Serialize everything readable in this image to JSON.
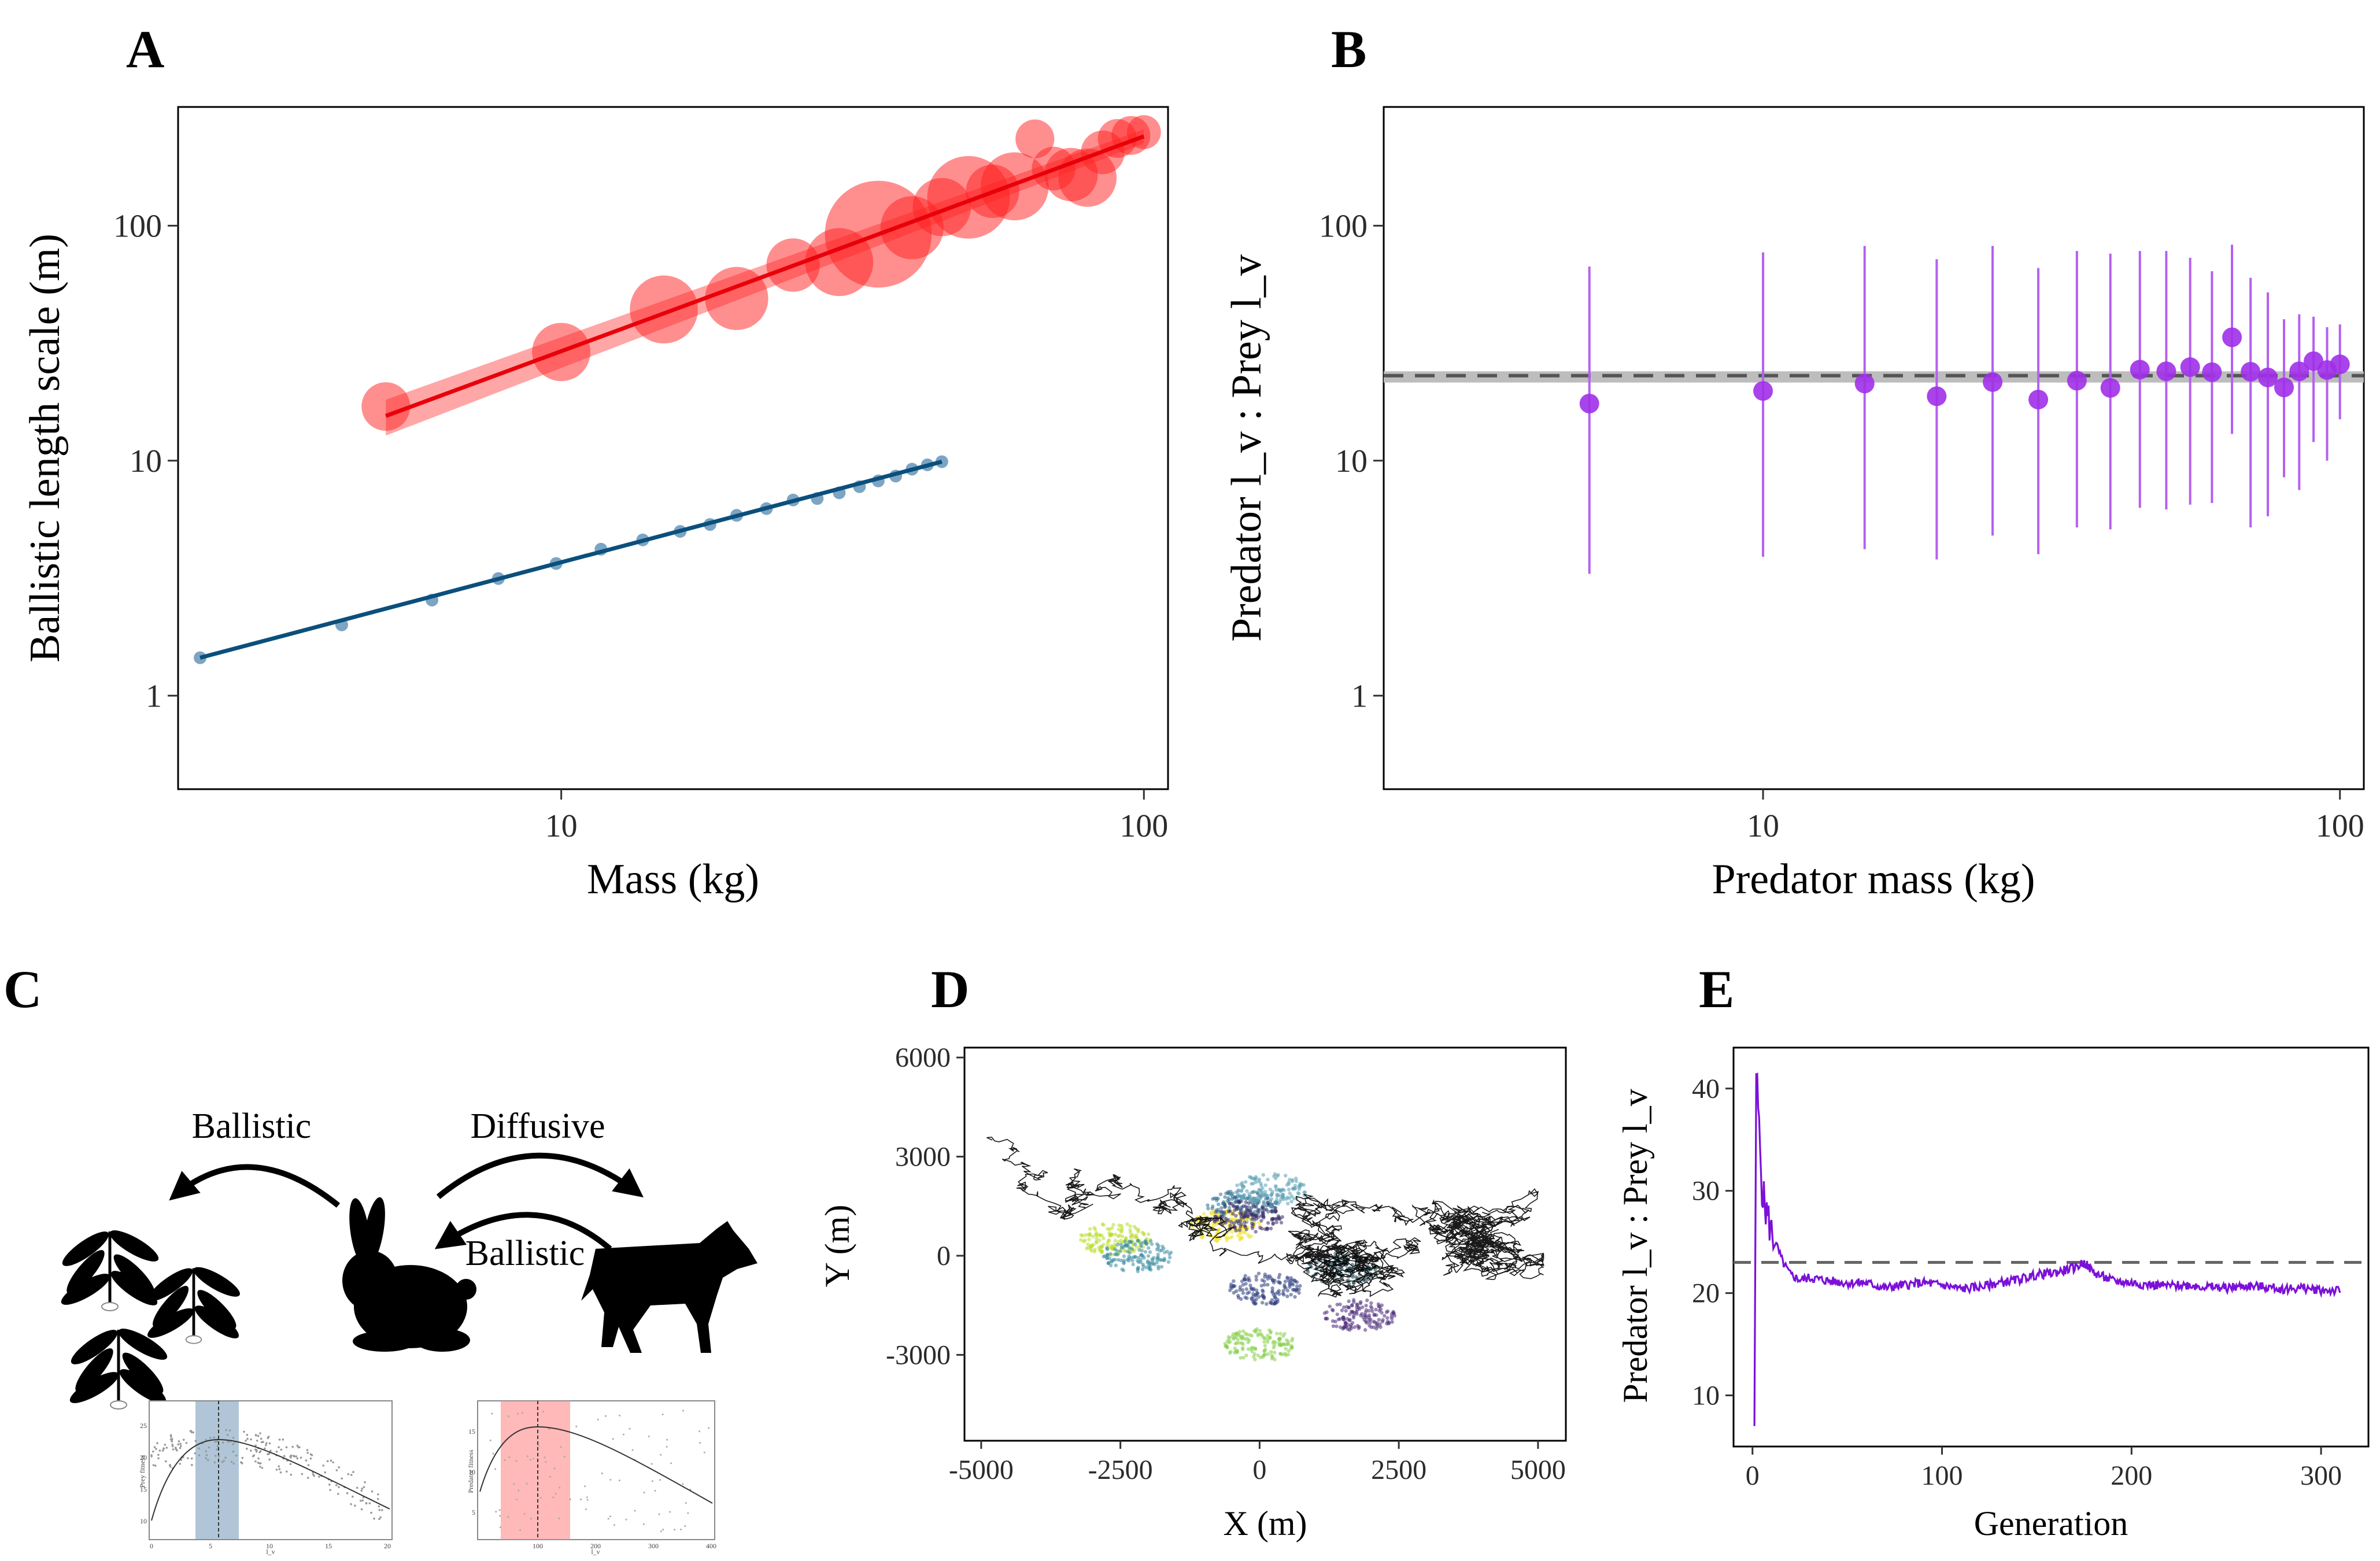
{
  "figure": {
    "panels": {
      "a": "A",
      "b": "B",
      "c": "C",
      "d": "D",
      "e": "E"
    }
  },
  "diagram": {
    "labels": [
      "Ballistic",
      "Diffusive",
      "Ballistic"
    ],
    "prey_inset": {
      "ylabel": "Prey fitness",
      "xlabel": "l_v",
      "xticks": [
        "0",
        "5",
        "10",
        "15",
        "20"
      ],
      "yticks": [
        "10",
        "15",
        "20",
        "25"
      ]
    },
    "predator_inset": {
      "ylabel": "Predator fitness",
      "xlabel": "l_v",
      "xticks": [
        "100",
        "200",
        "300",
        "400"
      ],
      "yticks": [
        "5",
        "10",
        "15"
      ]
    }
  },
  "colors": {
    "predator": "#ff2020",
    "prey": "#0b4f7c",
    "ratio": "#a030e8",
    "reference": "#666666",
    "track": "#000000"
  },
  "icons": [
    "plant-icon",
    "hare-icon",
    "wolf-icon",
    "arrow-icon"
  ],
  "chart_data": [
    {
      "id": "A",
      "type": "scatter",
      "xlabel": "Mass (kg)",
      "ylabel": "Ballistic length scale (m)",
      "xscale": "log",
      "yscale": "log",
      "xlim": [
        2.2,
        110
      ],
      "ylim": [
        0.4,
        320
      ],
      "xticks": [
        10,
        100
      ],
      "xtick_labels": [
        "10",
        "100"
      ],
      "yticks": [
        1,
        10,
        100
      ],
      "ytick_labels": [
        "1",
        "10",
        "100"
      ],
      "series": [
        {
          "group": "predator",
          "fit": {
            "x": [
              5,
              100
            ],
            "y": [
              15.5,
              240
            ]
          },
          "points": [
            [
              5,
              17,
              10
            ],
            [
              10,
              29,
              12
            ],
            [
              15,
              44,
              14
            ],
            [
              20,
              49,
              13
            ],
            [
              25,
              68,
              11
            ],
            [
              30,
              70,
              14
            ],
            [
              35,
              92,
              22
            ],
            [
              40,
              98,
              13
            ],
            [
              45,
              120,
              12
            ],
            [
              50,
              132,
              17
            ],
            [
              55,
              140,
              11
            ],
            [
              60,
              147,
              14
            ],
            [
              65,
              234,
              8
            ],
            [
              70,
              175,
              9
            ],
            [
              75,
              165,
              11
            ],
            [
              80,
              160,
              12
            ],
            [
              85,
              205,
              9
            ],
            [
              90,
              235,
              8
            ],
            [
              95,
              242,
              8
            ],
            [
              100,
              250,
              7
            ]
          ]
        },
        {
          "group": "prey",
          "fit": {
            "x": [
              2.4,
              45
            ],
            "y": [
              1.45,
              9.9
            ]
          },
          "points": [
            [
              2.4,
              1.45
            ],
            [
              4.2,
              2.0
            ],
            [
              6,
              2.55
            ],
            [
              7.8,
              3.15
            ],
            [
              9.8,
              3.65
            ],
            [
              11.7,
              4.2
            ],
            [
              13.8,
              4.6
            ],
            [
              16,
              5.0
            ],
            [
              18,
              5.35
            ],
            [
              20,
              5.85
            ],
            [
              22.5,
              6.25
            ],
            [
              25,
              6.8
            ],
            [
              27.5,
              6.9
            ],
            [
              30,
              7.3
            ],
            [
              32.5,
              7.75
            ],
            [
              35,
              8.2
            ],
            [
              37.5,
              8.6
            ],
            [
              40,
              9.2
            ],
            [
              42.5,
              9.6
            ],
            [
              45,
              9.9
            ]
          ]
        }
      ],
      "grid": false
    },
    {
      "id": "B",
      "type": "scatter",
      "xlabel": "Predator mass (kg)",
      "ylabel": "Predator l_v : Prey l_v",
      "xscale": "log",
      "yscale": "log",
      "xlim": [
        2.2,
        110
      ],
      "ylim": [
        0.4,
        320
      ],
      "xticks": [
        10,
        100
      ],
      "xtick_labels": [
        "10",
        "100"
      ],
      "yticks": [
        1,
        10,
        100
      ],
      "ytick_labels": [
        "1",
        "10",
        "100"
      ],
      "reference_line": 23,
      "reference_band": [
        21.5,
        24
      ],
      "points": [
        [
          5,
          17.5,
          3.3,
          67
        ],
        [
          10,
          19.8,
          3.9,
          77
        ],
        [
          15,
          21.3,
          4.2,
          82
        ],
        [
          20,
          18.8,
          3.8,
          72
        ],
        [
          25,
          21.6,
          4.8,
          82
        ],
        [
          30,
          18.2,
          4.0,
          66
        ],
        [
          35,
          21.9,
          5.2,
          78
        ],
        [
          40,
          20.4,
          5.1,
          76
        ],
        [
          45,
          24.4,
          6.3,
          78
        ],
        [
          50,
          24,
          6.2,
          78
        ],
        [
          55,
          25,
          6.5,
          73
        ],
        [
          60,
          23.8,
          6.6,
          64
        ],
        [
          65,
          33.5,
          13,
          83
        ],
        [
          70,
          23.9,
          5.2,
          60
        ],
        [
          75,
          22.6,
          5.8,
          52
        ],
        [
          80,
          20.5,
          8.5,
          40
        ],
        [
          85,
          24,
          7.5,
          42
        ],
        [
          90,
          26.5,
          12,
          41
        ],
        [
          95,
          24.3,
          10,
          37
        ],
        [
          100,
          25.7,
          15,
          38
        ]
      ],
      "grid": false
    },
    {
      "id": "D",
      "type": "scatter",
      "xlabel": "X (m)",
      "ylabel": "Y (m)",
      "xlim": [
        -5300,
        5500
      ],
      "ylim": [
        -5600,
        6300
      ],
      "xticks": [
        -5000,
        -2500,
        0,
        2500,
        5000
      ],
      "xtick_labels": [
        "-5000",
        "-2500",
        "0",
        "2500",
        "5000"
      ],
      "yticks": [
        -3000,
        0,
        3000,
        6000
      ],
      "ytick_labels": [
        "-3000",
        "0",
        "3000",
        "6000"
      ],
      "prey_clusters": [
        {
          "x": -2600,
          "y": 500,
          "color": "#b8dd2a"
        },
        {
          "x": -2200,
          "y": 0,
          "color": "#3c8ca0"
        },
        {
          "x": -300,
          "y": 1500,
          "color": "#2d6e8e"
        },
        {
          "x": -600,
          "y": 900,
          "color": "#f0e020"
        },
        {
          "x": -200,
          "y": 1200,
          "color": "#3a2a6a"
        },
        {
          "x": 200,
          "y": 2000,
          "color": "#5aa0b4"
        },
        {
          "x": 1500,
          "y": -400,
          "color": "#173e4a"
        },
        {
          "x": 100,
          "y": -1000,
          "color": "#2e3e7e"
        },
        {
          "x": 1800,
          "y": -1800,
          "color": "#4a2a7a"
        },
        {
          "x": 0,
          "y": -2700,
          "color": "#86d04a"
        }
      ],
      "predator_track": {
        "start": [
          -4800,
          3500
        ],
        "end": [
          5000,
          2500
        ]
      },
      "grid": false
    },
    {
      "id": "E",
      "type": "line",
      "xlabel": "Generation",
      "ylabel": "Predator l_v : Prey l_v",
      "xlim": [
        -10,
        325
      ],
      "ylim": [
        5,
        44
      ],
      "xticks": [
        0,
        100,
        200,
        300
      ],
      "xtick_labels": [
        "0",
        "100",
        "200",
        "300"
      ],
      "yticks": [
        10,
        20,
        30,
        40
      ],
      "ytick_labels": [
        "10",
        "20",
        "30",
        "40"
      ],
      "reference_line": 23,
      "series": [
        {
          "x": [
            1,
            2,
            3,
            4,
            5,
            6,
            8,
            10,
            13,
            16,
            20,
            25,
            30,
            40,
            50,
            60,
            70,
            80,
            90,
            100,
            110,
            120,
            130,
            140,
            150,
            160,
            170,
            175,
            180,
            190,
            200,
            210,
            220,
            230,
            240,
            250,
            260,
            270,
            280,
            290,
            300,
            310
          ],
          "y": [
            7,
            41.5,
            38,
            34,
            30.5,
            29,
            27.5,
            26,
            24.5,
            23,
            21.8,
            21.3,
            21.5,
            21.2,
            21,
            21,
            20.5,
            20.8,
            21,
            20.8,
            20.4,
            20.6,
            21,
            21.3,
            21.8,
            22,
            22.5,
            23,
            22,
            21.2,
            21,
            20.8,
            20.7,
            20.8,
            20.6,
            20.5,
            20.7,
            20.6,
            20.4,
            20.5,
            20.3,
            20.2
          ]
        }
      ],
      "grid": false
    }
  ]
}
